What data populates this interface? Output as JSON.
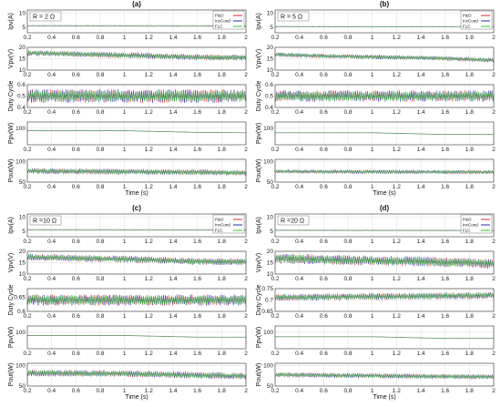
{
  "colors": {
    "P&O": "#e8202a",
    "IncCond": "#2a2ab8",
    "FLC": "#2ec82e",
    "grid": "#d6d6d6",
    "frame": "#333333"
  },
  "figure": {
    "legend_position": "top-right of each group's first subplot",
    "grid": true,
    "x_axis_label_shown_on": "bottom subplot of each group"
  },
  "chart_data": [
    {
      "type": "line",
      "panel": "(a)",
      "condition": "R = 2 Ω",
      "x": [
        0,
        2
      ],
      "xlim": [
        0.2,
        2
      ],
      "xticks": [
        "0.2",
        "0.4",
        "0.6",
        "0.8",
        "1",
        "1.2",
        "1.4",
        "1.6",
        "1.8",
        "2"
      ],
      "xlabel": "Time (s)",
      "legend": [
        "P&O",
        "IncCond",
        "FLC"
      ],
      "subplots": [
        {
          "ylabel": "Ipv(A)",
          "ylim": [
            3,
            11
          ],
          "yticks": [
            "5",
            "10"
          ],
          "levels": [
            [
              0,
              5.5
            ],
            [
              2,
              5.4
            ]
          ],
          "ripple": 0.25
        },
        {
          "ylabel": "Vpv(V)",
          "ylim": [
            10,
            20
          ],
          "yticks": [
            "10",
            "15",
            "20"
          ],
          "levels": [
            [
              0,
              17.8
            ],
            [
              0.6,
              17
            ],
            [
              1.2,
              16.3
            ],
            [
              1.6,
              15.6
            ],
            [
              2,
              15.5
            ]
          ],
          "ripple": 1.3
        },
        {
          "ylabel": "Duty Cycle",
          "ylim": [
            0.4,
            0.6
          ],
          "yticks": [
            "0.4",
            "0.5",
            "0.6"
          ],
          "levels": [
            [
              0,
              0.5
            ],
            [
              2,
              0.5
            ]
          ],
          "ripple": 0.06
        },
        {
          "ylabel": "Ppv(W)",
          "ylim": [
            60,
            115
          ],
          "yticks": [
            "100"
          ],
          "levels": [
            [
              0,
              94
            ],
            [
              1,
              94
            ],
            [
              1.6,
              90
            ],
            [
              2,
              89
            ]
          ],
          "ripple": 0.6
        },
        {
          "ylabel": "Pout(W)",
          "ylim": [
            50,
            105
          ],
          "yticks": [
            "50",
            "100"
          ],
          "levels": [
            [
              0,
              77
            ],
            [
              1.6,
              74
            ],
            [
              2,
              72
            ]
          ],
          "ripple": 7
        }
      ]
    },
    {
      "type": "line",
      "panel": "(b)",
      "condition": "R = 5 Ω",
      "x": [
        0,
        2
      ],
      "xlim": [
        0.2,
        2
      ],
      "xticks": [
        "0.2",
        "0.4",
        "0.6",
        "0.8",
        "1",
        "1.2",
        "1.4",
        "1.6",
        "1.8",
        "2"
      ],
      "xlabel": "Time (s)",
      "legend": [
        "P&O",
        "IncCond",
        "FLC"
      ],
      "subplots": [
        {
          "ylabel": "Ipv(A)",
          "ylim": [
            3,
            11
          ],
          "yticks": [
            "5",
            "10"
          ],
          "levels": [
            [
              0,
              5.2
            ],
            [
              2,
              5.1
            ]
          ],
          "ripple": 0.2
        },
        {
          "ylabel": "Vpv(V)",
          "ylim": [
            10,
            20
          ],
          "yticks": [
            "10",
            "15",
            "20"
          ],
          "levels": [
            [
              0,
              17.2
            ],
            [
              0.6,
              16.2
            ],
            [
              1.5,
              15.3
            ],
            [
              2,
              14.3
            ]
          ],
          "ripple": 1.0
        },
        {
          "ylabel": "Duty Cycle",
          "ylim": [
            0.4,
            0.6
          ],
          "yticks": [
            "0.4",
            "0.5",
            "0.6"
          ],
          "levels": [
            [
              0,
              0.5
            ],
            [
              2,
              0.5
            ]
          ],
          "ripple": 0.05
        },
        {
          "ylabel": "Ppv(W)",
          "ylim": [
            60,
            115
          ],
          "yticks": [
            "100"
          ],
          "levels": [
            [
              0,
              89
            ],
            [
              1,
              89
            ],
            [
              1.6,
              85
            ],
            [
              2,
              85
            ]
          ],
          "ripple": 0.6
        },
        {
          "ylabel": "Pout(W)",
          "ylim": [
            50,
            105
          ],
          "yticks": [
            "50",
            "100"
          ],
          "levels": [
            [
              0,
              76
            ],
            [
              2,
              74
            ]
          ],
          "ripple": 5
        }
      ]
    },
    {
      "type": "line",
      "panel": "(c)",
      "condition": "R =10 Ω",
      "x": [
        0,
        2
      ],
      "xlim": [
        0.2,
        2
      ],
      "xticks": [
        "0.2",
        "0.4",
        "0.6",
        "0.8",
        "1",
        "1.2",
        "1.4",
        "1.6",
        "1.8",
        "2"
      ],
      "xlabel": "Time (s)",
      "legend": [
        "P&O",
        "IncCond",
        "FLC"
      ],
      "subplots": [
        {
          "ylabel": "Ipv(A)",
          "ylim": [
            3,
            11
          ],
          "yticks": [
            "5",
            "10"
          ],
          "levels": [
            [
              0,
              5.5
            ],
            [
              2,
              5.4
            ]
          ],
          "ripple": 0.2
        },
        {
          "ylabel": "Vpv(V)",
          "ylim": [
            10,
            20
          ],
          "yticks": [
            "10",
            "15",
            "20"
          ],
          "levels": [
            [
              0,
              17.8
            ],
            [
              0.55,
              17
            ],
            [
              1.2,
              16.3
            ],
            [
              1.6,
              15.5
            ],
            [
              2,
              15.4
            ]
          ],
          "ripple": 1.5
        },
        {
          "ylabel": "Duty Cycle",
          "ylim": [
            0.6,
            0.68
          ],
          "yticks": [
            "0.6",
            "0.65"
          ],
          "levels": [
            [
              0,
              0.64
            ],
            [
              2,
              0.64
            ]
          ],
          "ripple": 0.02
        },
        {
          "ylabel": "Ppv(W)",
          "ylim": [
            60,
            115
          ],
          "yticks": [
            "100"
          ],
          "levels": [
            [
              0,
              92
            ],
            [
              1,
              92
            ],
            [
              1.6,
              88
            ],
            [
              2,
              88
            ]
          ],
          "ripple": 0.6
        },
        {
          "ylabel": "Pout(W)",
          "ylim": [
            50,
            105
          ],
          "yticks": [
            "50",
            "100"
          ],
          "levels": [
            [
              0,
              82
            ],
            [
              1,
              80
            ],
            [
              1.6,
              76
            ],
            [
              2,
              74
            ]
          ],
          "ripple": 8
        }
      ]
    },
    {
      "type": "line",
      "panel": "(d)",
      "condition": "R =20 Ω",
      "x": [
        0,
        2
      ],
      "xlim": [
        0.2,
        2
      ],
      "xticks": [
        "0.2",
        "0.4",
        "0.6",
        "0.8",
        "1",
        "1.2",
        "1.4",
        "1.6",
        "1.8",
        "2"
      ],
      "xlabel": "Time (s)",
      "legend": [
        "P&O",
        "IncCond",
        "FLC"
      ],
      "subplots": [
        {
          "ylabel": "Ipv(A)",
          "ylim": [
            3,
            11
          ],
          "yticks": [
            "5",
            "10"
          ],
          "levels": [
            [
              0,
              5.3
            ],
            [
              2,
              5.2
            ]
          ],
          "ripple": 0.2
        },
        {
          "ylabel": "Vpv(V)",
          "ylim": [
            10,
            20
          ],
          "yticks": [
            "10",
            "15",
            "20"
          ],
          "levels": [
            [
              0,
              17.2
            ],
            [
              0.6,
              16.3
            ],
            [
              1.5,
              15.4
            ],
            [
              2,
              14.5
            ]
          ],
          "ripple": 2.2
        },
        {
          "ylabel": "Duty Cycle",
          "ylim": [
            0.65,
            0.75
          ],
          "yticks": [
            "0.65",
            "0.7",
            "0.75"
          ],
          "levels": [
            [
              0,
              0.71
            ],
            [
              2,
              0.72
            ]
          ],
          "ripple": 0.015
        },
        {
          "ylabel": "Ppv(W)",
          "ylim": [
            60,
            115
          ],
          "yticks": [
            "100"
          ],
          "levels": [
            [
              0,
              89
            ],
            [
              1,
              89
            ],
            [
              1.6,
              85
            ],
            [
              2,
              85
            ]
          ],
          "ripple": 0.6
        },
        {
          "ylabel": "Pout(W)",
          "ylim": [
            50,
            105
          ],
          "yticks": [
            "50",
            "100"
          ],
          "levels": [
            [
              0,
              78
            ],
            [
              1.6,
              73
            ],
            [
              2,
              72
            ]
          ],
          "ripple": 6
        }
      ]
    }
  ]
}
